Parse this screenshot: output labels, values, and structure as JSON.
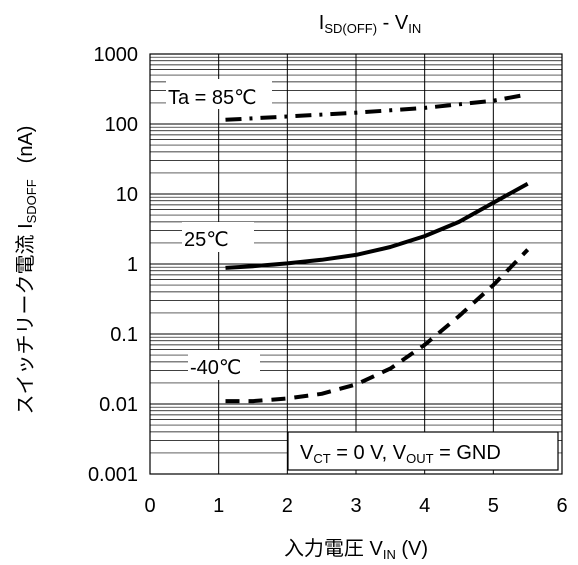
{
  "chart_data": {
    "type": "line",
    "title": {
      "main": "I",
      "main_sub": "SD(OFF)",
      "sep": " - V",
      "sep_sub": "IN"
    },
    "xlabel": {
      "main": "入力電圧 V",
      "sub": "IN",
      "unit": " (V)"
    },
    "ylabel": {
      "main": "スイッチリーク電流 I",
      "sub": "SDOFF",
      "unit": "(nA)"
    },
    "x_axis": {
      "min": 0,
      "max": 6,
      "ticks": [
        0,
        1,
        2,
        3,
        4,
        5,
        6
      ],
      "tick_labels": [
        "0",
        "1",
        "2",
        "3",
        "4",
        "5",
        "6"
      ]
    },
    "y_axis": {
      "scale": "log",
      "min": 0.001,
      "max": 1000,
      "ticks": [
        0.001,
        0.01,
        0.1,
        1,
        10,
        100,
        1000
      ],
      "tick_labels": [
        "0.001",
        "0.01",
        "0.1",
        "1",
        "10",
        "100",
        "1000"
      ]
    },
    "grid": true,
    "series": [
      {
        "name": "Ta = 85℃",
        "style": "dash-dot",
        "x": [
          1.1,
          2.0,
          3.0,
          4.0,
          5.0,
          5.5
        ],
        "y": [
          115,
          128,
          145,
          170,
          215,
          265
        ]
      },
      {
        "name": "25℃",
        "style": "solid",
        "x": [
          1.1,
          1.5,
          2.0,
          2.5,
          3.0,
          3.5,
          4.0,
          4.5,
          5.0,
          5.5
        ],
        "y": [
          0.88,
          0.93,
          1.02,
          1.15,
          1.35,
          1.75,
          2.5,
          4.0,
          7.5,
          14
        ]
      },
      {
        "name": "-40℃",
        "style": "dashed",
        "x": [
          1.1,
          1.5,
          2.0,
          2.5,
          3.0,
          3.5,
          4.0,
          4.5,
          5.0,
          5.5
        ],
        "y": [
          0.011,
          0.011,
          0.012,
          0.014,
          0.019,
          0.032,
          0.07,
          0.18,
          0.5,
          1.6
        ]
      }
    ],
    "annotations": [
      {
        "text": "Ta = 85℃"
      },
      {
        "text": "25℃"
      },
      {
        "text": "-40℃"
      }
    ],
    "condition_box": {
      "v": "V",
      "ct": "CT",
      "mid": " = 0 V, V",
      "out": "OUT",
      "end": " = GND"
    }
  }
}
